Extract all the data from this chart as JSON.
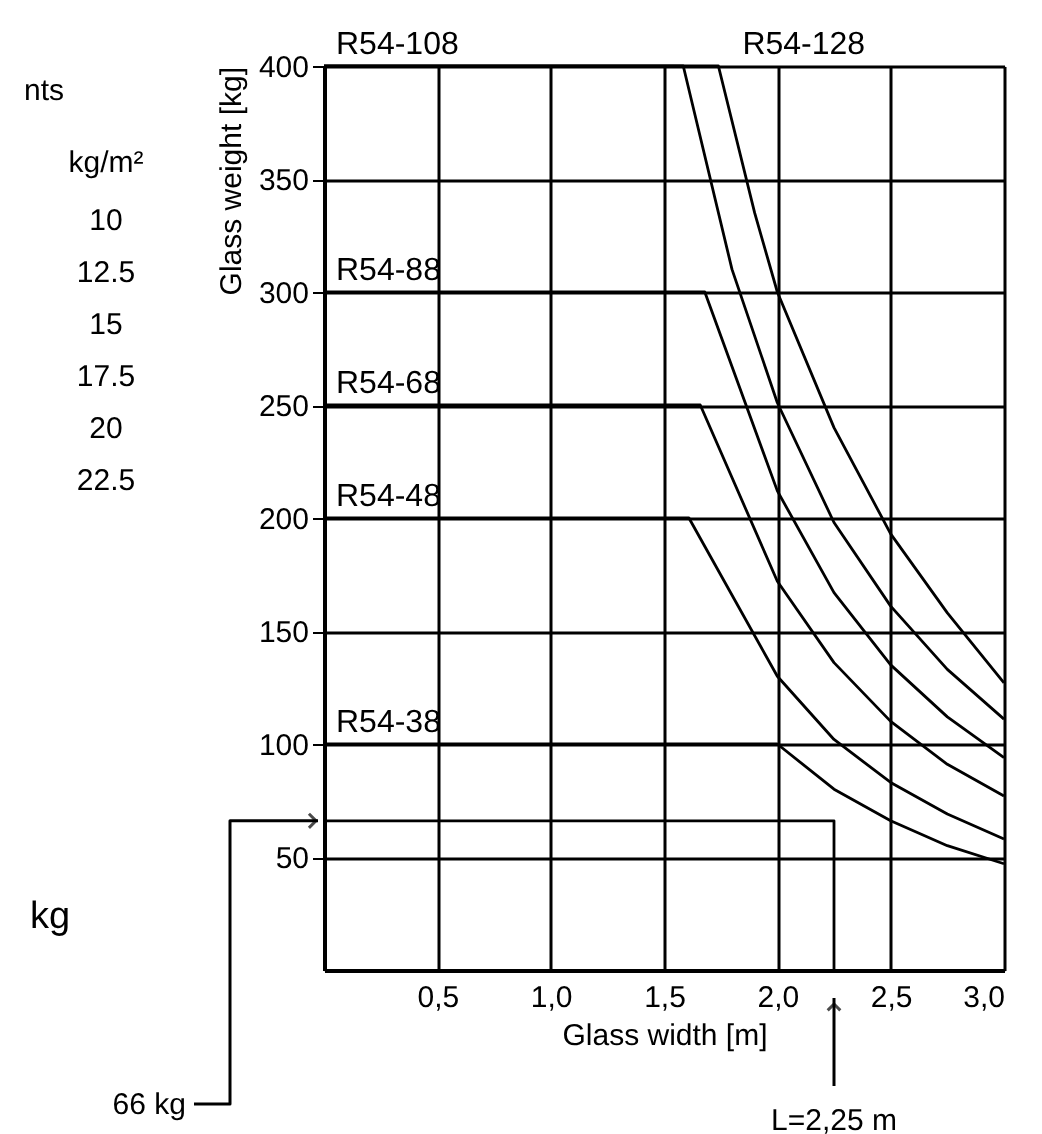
{
  "chart_data": {
    "type": "line",
    "xlabel": "Glass width [m]",
    "ylabel": "Glass weight  [kg]",
    "xlim": [
      0,
      3.0
    ],
    "ylim": [
      0,
      400
    ],
    "xticks": [
      {
        "value": 0.5,
        "label": "0,5"
      },
      {
        "value": 1.0,
        "label": "1,0"
      },
      {
        "value": 1.5,
        "label": "1,5"
      },
      {
        "value": 2.0,
        "label": "2,0"
      },
      {
        "value": 2.5,
        "label": "2,5"
      },
      {
        "value": 3.0,
        "label": "3,0"
      }
    ],
    "yticks": [
      50,
      100,
      150,
      200,
      250,
      300,
      350,
      400
    ],
    "grid": true,
    "legend": false,
    "marker": "none",
    "line_style": "solid",
    "series": [
      {
        "name": "R54-108",
        "color": "#000000",
        "x": [
          0,
          1.585,
          1.8,
          2.0,
          2.25,
          2.5,
          2.75,
          3.0
        ],
        "values": [
          400,
          400,
          310,
          251,
          198,
          161,
          133,
          111
        ]
      },
      {
        "name": "R54-128",
        "color": "#000000",
        "x": [
          0,
          1.74,
          1.9,
          2.0,
          2.25,
          2.5,
          2.75,
          3.0
        ],
        "values": [
          400,
          400,
          335,
          300,
          240,
          193,
          158,
          127
        ]
      },
      {
        "name": "R54-88",
        "color": "#000000",
        "x": [
          0,
          1.68,
          2.0,
          2.25,
          2.5,
          2.75,
          3.0
        ],
        "values": [
          300,
          300,
          212,
          167,
          135,
          112,
          94
        ]
      },
      {
        "name": "R54-68",
        "color": "#000000",
        "x": [
          0,
          1.66,
          2.0,
          2.25,
          2.5,
          2.75,
          3.0
        ],
        "values": [
          250,
          250,
          172,
          136,
          110,
          91,
          77
        ]
      },
      {
        "name": "R54-48",
        "color": "#000000",
        "x": [
          0,
          1.61,
          2.0,
          2.25,
          2.5,
          2.75,
          3.0
        ],
        "values": [
          200,
          200,
          130,
          102,
          83,
          69,
          58
        ]
      },
      {
        "name": "R54-38",
        "color": "#000000",
        "x": [
          0,
          2.0,
          2.25,
          2.5,
          2.75,
          3.0
        ],
        "values": [
          100,
          100,
          80,
          66,
          55,
          47
        ]
      },
      {
        "color": "#000000",
        "x": [
          0,
          2.25,
          2.25
        ],
        "values": [
          66,
          66,
          0
        ]
      }
    ],
    "annotations": [
      "nts",
      "kg/m²",
      "10",
      "12.5",
      "15",
      "17.5",
      "20",
      "22.5",
      "kg",
      "66 kg",
      "L=2,25 m"
    ]
  }
}
